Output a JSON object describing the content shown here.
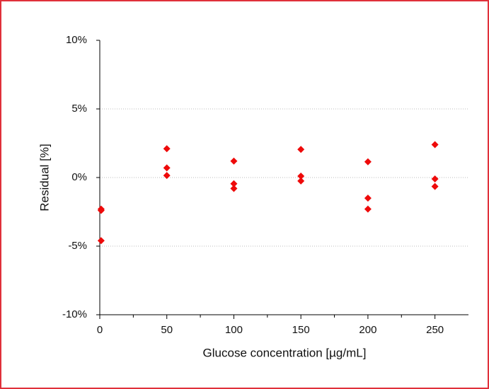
{
  "chart_data": {
    "type": "scatter",
    "x_label": "Glucose concentration [µg/mL]",
    "y_label": "Residual [%]",
    "series": [
      {
        "color": "#ee0a0a",
        "x": [
          1,
          1,
          1,
          50,
          50,
          50,
          100,
          100,
          100,
          150,
          150,
          150,
          200,
          200,
          200,
          250,
          250,
          250
        ],
        "values": [
          -2.3,
          -2.4,
          -4.6,
          2.1,
          0.7,
          0.15,
          1.2,
          -0.45,
          -0.8,
          2.05,
          0.1,
          -0.25,
          1.15,
          -1.5,
          -2.3,
          2.4,
          -0.1,
          -0.65
        ]
      }
    ],
    "xlim": [
      0,
      275
    ],
    "xticks": [
      0,
      50,
      100,
      150,
      200,
      250
    ],
    "xminorticks": [
      25,
      75,
      125,
      175,
      225
    ],
    "ylim": [
      -10,
      10
    ],
    "yticks": [
      {
        "value": -10,
        "label": "-10%"
      },
      {
        "value": -5,
        "label": "-5%"
      },
      {
        "value": 0,
        "label": "0%"
      },
      {
        "value": 5,
        "label": "5%"
      },
      {
        "value": 10,
        "label": "10%"
      }
    ],
    "grid": true
  }
}
